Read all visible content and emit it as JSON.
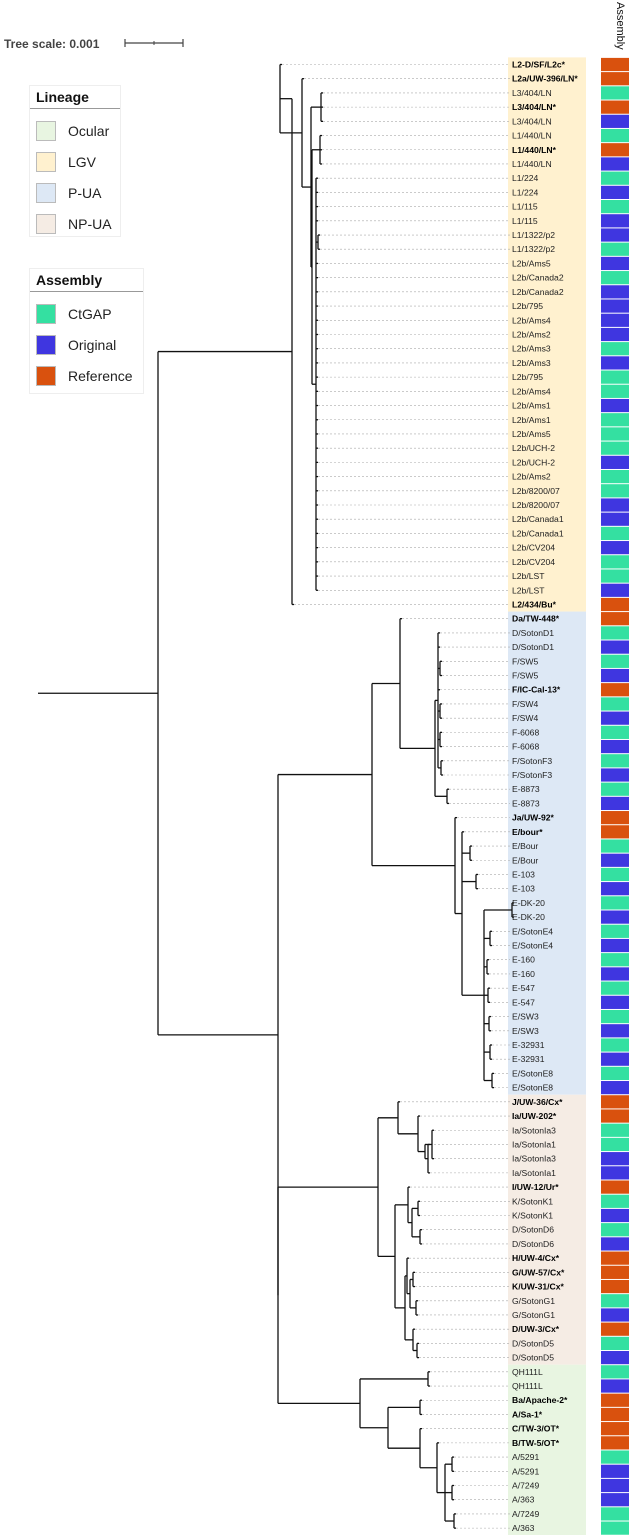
{
  "scale": {
    "title": "Tree scale: 0.001"
  },
  "column_header": "Assembly",
  "lineage_legend": {
    "title": "Lineage",
    "items": [
      {
        "key": "Ocular",
        "label": "Ocular",
        "color": "#e8f5e1"
      },
      {
        "key": "LGV",
        "label": "LGV",
        "color": "#fff1cf"
      },
      {
        "key": "PUA",
        "label": "P-UA",
        "color": "#dde8f5"
      },
      {
        "key": "NPUA",
        "label": "NP-UA",
        "color": "#f5ece4"
      }
    ]
  },
  "assembly_legend": {
    "title": "Assembly",
    "items": [
      {
        "key": "C",
        "label": "CtGAP",
        "color": "#34e0a1"
      },
      {
        "key": "O",
        "label": "Original",
        "color": "#3f36e0"
      },
      {
        "key": "R",
        "label": "Reference",
        "color": "#d9510e"
      }
    ]
  },
  "leaves": [
    {
      "label": "L2-D/SF/L2c*",
      "assembly": "R"
    },
    {
      "label": "L2a/UW-396/LN*",
      "assembly": "R"
    },
    {
      "label": "L3/404/LN",
      "assembly": "C"
    },
    {
      "label": "L3/404/LN*",
      "assembly": "R"
    },
    {
      "label": "L3/404/LN",
      "assembly": "O"
    },
    {
      "label": "L1/440/LN",
      "assembly": "C"
    },
    {
      "label": "L1/440/LN*",
      "assembly": "R"
    },
    {
      "label": "L1/440/LN",
      "assembly": "O"
    },
    {
      "label": "L1/224",
      "assembly": "C"
    },
    {
      "label": "L1/224",
      "assembly": "O"
    },
    {
      "label": "L1/115",
      "assembly": "C"
    },
    {
      "label": "L1/115",
      "assembly": "O"
    },
    {
      "label": "L1/1322/p2",
      "assembly": "O"
    },
    {
      "label": "L1/1322/p2",
      "assembly": "C"
    },
    {
      "label": "L2b/Ams5",
      "assembly": "O"
    },
    {
      "label": "L2b/Canada2",
      "assembly": "C"
    },
    {
      "label": "L2b/Canada2",
      "assembly": "O"
    },
    {
      "label": "L2b/795",
      "assembly": "O"
    },
    {
      "label": "L2b/Ams4",
      "assembly": "O"
    },
    {
      "label": "L2b/Ams2",
      "assembly": "O"
    },
    {
      "label": "L2b/Ams3",
      "assembly": "C"
    },
    {
      "label": "L2b/Ams3",
      "assembly": "O"
    },
    {
      "label": "L2b/795",
      "assembly": "C"
    },
    {
      "label": "L2b/Ams4",
      "assembly": "C"
    },
    {
      "label": "L2b/Ams1",
      "assembly": "O"
    },
    {
      "label": "L2b/Ams1",
      "assembly": "C"
    },
    {
      "label": "L2b/Ams5",
      "assembly": "C"
    },
    {
      "label": "L2b/UCH-2",
      "assembly": "C"
    },
    {
      "label": "L2b/UCH-2",
      "assembly": "O"
    },
    {
      "label": "L2b/Ams2",
      "assembly": "C"
    },
    {
      "label": "L2b/8200/07",
      "assembly": "C"
    },
    {
      "label": "L2b/8200/07",
      "assembly": "O"
    },
    {
      "label": "L2b/Canada1",
      "assembly": "O"
    },
    {
      "label": "L2b/Canada1",
      "assembly": "C"
    },
    {
      "label": "L2b/CV204",
      "assembly": "O"
    },
    {
      "label": "L2b/CV204",
      "assembly": "C"
    },
    {
      "label": "L2b/LST",
      "assembly": "C"
    },
    {
      "label": "L2b/LST",
      "assembly": "O"
    },
    {
      "label": "L2/434/Bu*",
      "assembly": "R"
    },
    {
      "label": "Da/TW-448*",
      "assembly": "R"
    },
    {
      "label": "D/SotonD1",
      "assembly": "C"
    },
    {
      "label": "D/SotonD1",
      "assembly": "O"
    },
    {
      "label": "F/SW5",
      "assembly": "C"
    },
    {
      "label": "F/SW5",
      "assembly": "O"
    },
    {
      "label": "F/IC-Cal-13*",
      "assembly": "R"
    },
    {
      "label": "F/SW4",
      "assembly": "C"
    },
    {
      "label": "F/SW4",
      "assembly": "O"
    },
    {
      "label": "F-6068",
      "assembly": "C"
    },
    {
      "label": "F-6068",
      "assembly": "O"
    },
    {
      "label": "F/SotonF3",
      "assembly": "C"
    },
    {
      "label": "F/SotonF3",
      "assembly": "O"
    },
    {
      "label": "E-8873",
      "assembly": "C"
    },
    {
      "label": "E-8873",
      "assembly": "O"
    },
    {
      "label": "Ja/UW-92*",
      "assembly": "R"
    },
    {
      "label": "E/bour*",
      "assembly": "R"
    },
    {
      "label": "E/Bour",
      "assembly": "C"
    },
    {
      "label": "E/Bour",
      "assembly": "O"
    },
    {
      "label": "E-103",
      "assembly": "C"
    },
    {
      "label": "E-103",
      "assembly": "O"
    },
    {
      "label": "E-DK-20",
      "assembly": "C"
    },
    {
      "label": "E-DK-20",
      "assembly": "O"
    },
    {
      "label": "E/SotonE4",
      "assembly": "C"
    },
    {
      "label": "E/SotonE4",
      "assembly": "O"
    },
    {
      "label": "E-160",
      "assembly": "C"
    },
    {
      "label": "E-160",
      "assembly": "O"
    },
    {
      "label": "E-547",
      "assembly": "C"
    },
    {
      "label": "E-547",
      "assembly": "O"
    },
    {
      "label": "E/SW3",
      "assembly": "C"
    },
    {
      "label": "E/SW3",
      "assembly": "O"
    },
    {
      "label": "E-32931",
      "assembly": "C"
    },
    {
      "label": "E-32931",
      "assembly": "O"
    },
    {
      "label": "E/SotonE8",
      "assembly": "C"
    },
    {
      "label": "E/SotonE8",
      "assembly": "O"
    },
    {
      "label": "J/UW-36/Cx*",
      "assembly": "R"
    },
    {
      "label": "Ia/UW-202*",
      "assembly": "R"
    },
    {
      "label": "Ia/SotonIa3",
      "assembly": "C"
    },
    {
      "label": "Ia/SotonIa1",
      "assembly": "C"
    },
    {
      "label": "Ia/SotonIa3",
      "assembly": "O"
    },
    {
      "label": "Ia/SotonIa1",
      "assembly": "O"
    },
    {
      "label": "I/UW-12/Ur*",
      "assembly": "R"
    },
    {
      "label": "K/SotonK1",
      "assembly": "C"
    },
    {
      "label": "K/SotonK1",
      "assembly": "O"
    },
    {
      "label": "D/SotonD6",
      "assembly": "C"
    },
    {
      "label": "D/SotonD6",
      "assembly": "O"
    },
    {
      "label": "H/UW-4/Cx*",
      "assembly": "R"
    },
    {
      "label": "G/UW-57/Cx*",
      "assembly": "R"
    },
    {
      "label": "K/UW-31/Cx*",
      "assembly": "R"
    },
    {
      "label": "G/SotonG1",
      "assembly": "C"
    },
    {
      "label": "G/SotonG1",
      "assembly": "O"
    },
    {
      "label": "D/UW-3/Cx*",
      "assembly": "R"
    },
    {
      "label": "D/SotonD5",
      "assembly": "C"
    },
    {
      "label": "D/SotonD5",
      "assembly": "O"
    },
    {
      "label": "QH111L",
      "assembly": "C"
    },
    {
      "label": "QH111L",
      "assembly": "O"
    },
    {
      "label": "Ba/Apache-2*",
      "assembly": "R"
    },
    {
      "label": "A/Sa-1*",
      "assembly": "R"
    },
    {
      "label": "C/TW-3/OT*",
      "assembly": "R"
    },
    {
      "label": "B/TW-5/OT*",
      "assembly": "R"
    },
    {
      "label": "A/5291",
      "assembly": "C"
    },
    {
      "label": "A/5291",
      "assembly": "O"
    },
    {
      "label": "A/7249",
      "assembly": "O"
    },
    {
      "label": "A/363",
      "assembly": "O"
    },
    {
      "label": "A/7249",
      "assembly": "C"
    },
    {
      "label": "A/363",
      "assembly": "C"
    }
  ],
  "lineage_blocks": [
    {
      "lineage": "LGV",
      "from": 0,
      "to": 38
    },
    {
      "lineage": "PUA",
      "from": 39,
      "to": 72
    },
    {
      "lineage": "NPUA",
      "from": 73,
      "to": 91
    },
    {
      "lineage": "Ocular",
      "from": 92,
      "to": 104
    }
  ]
}
